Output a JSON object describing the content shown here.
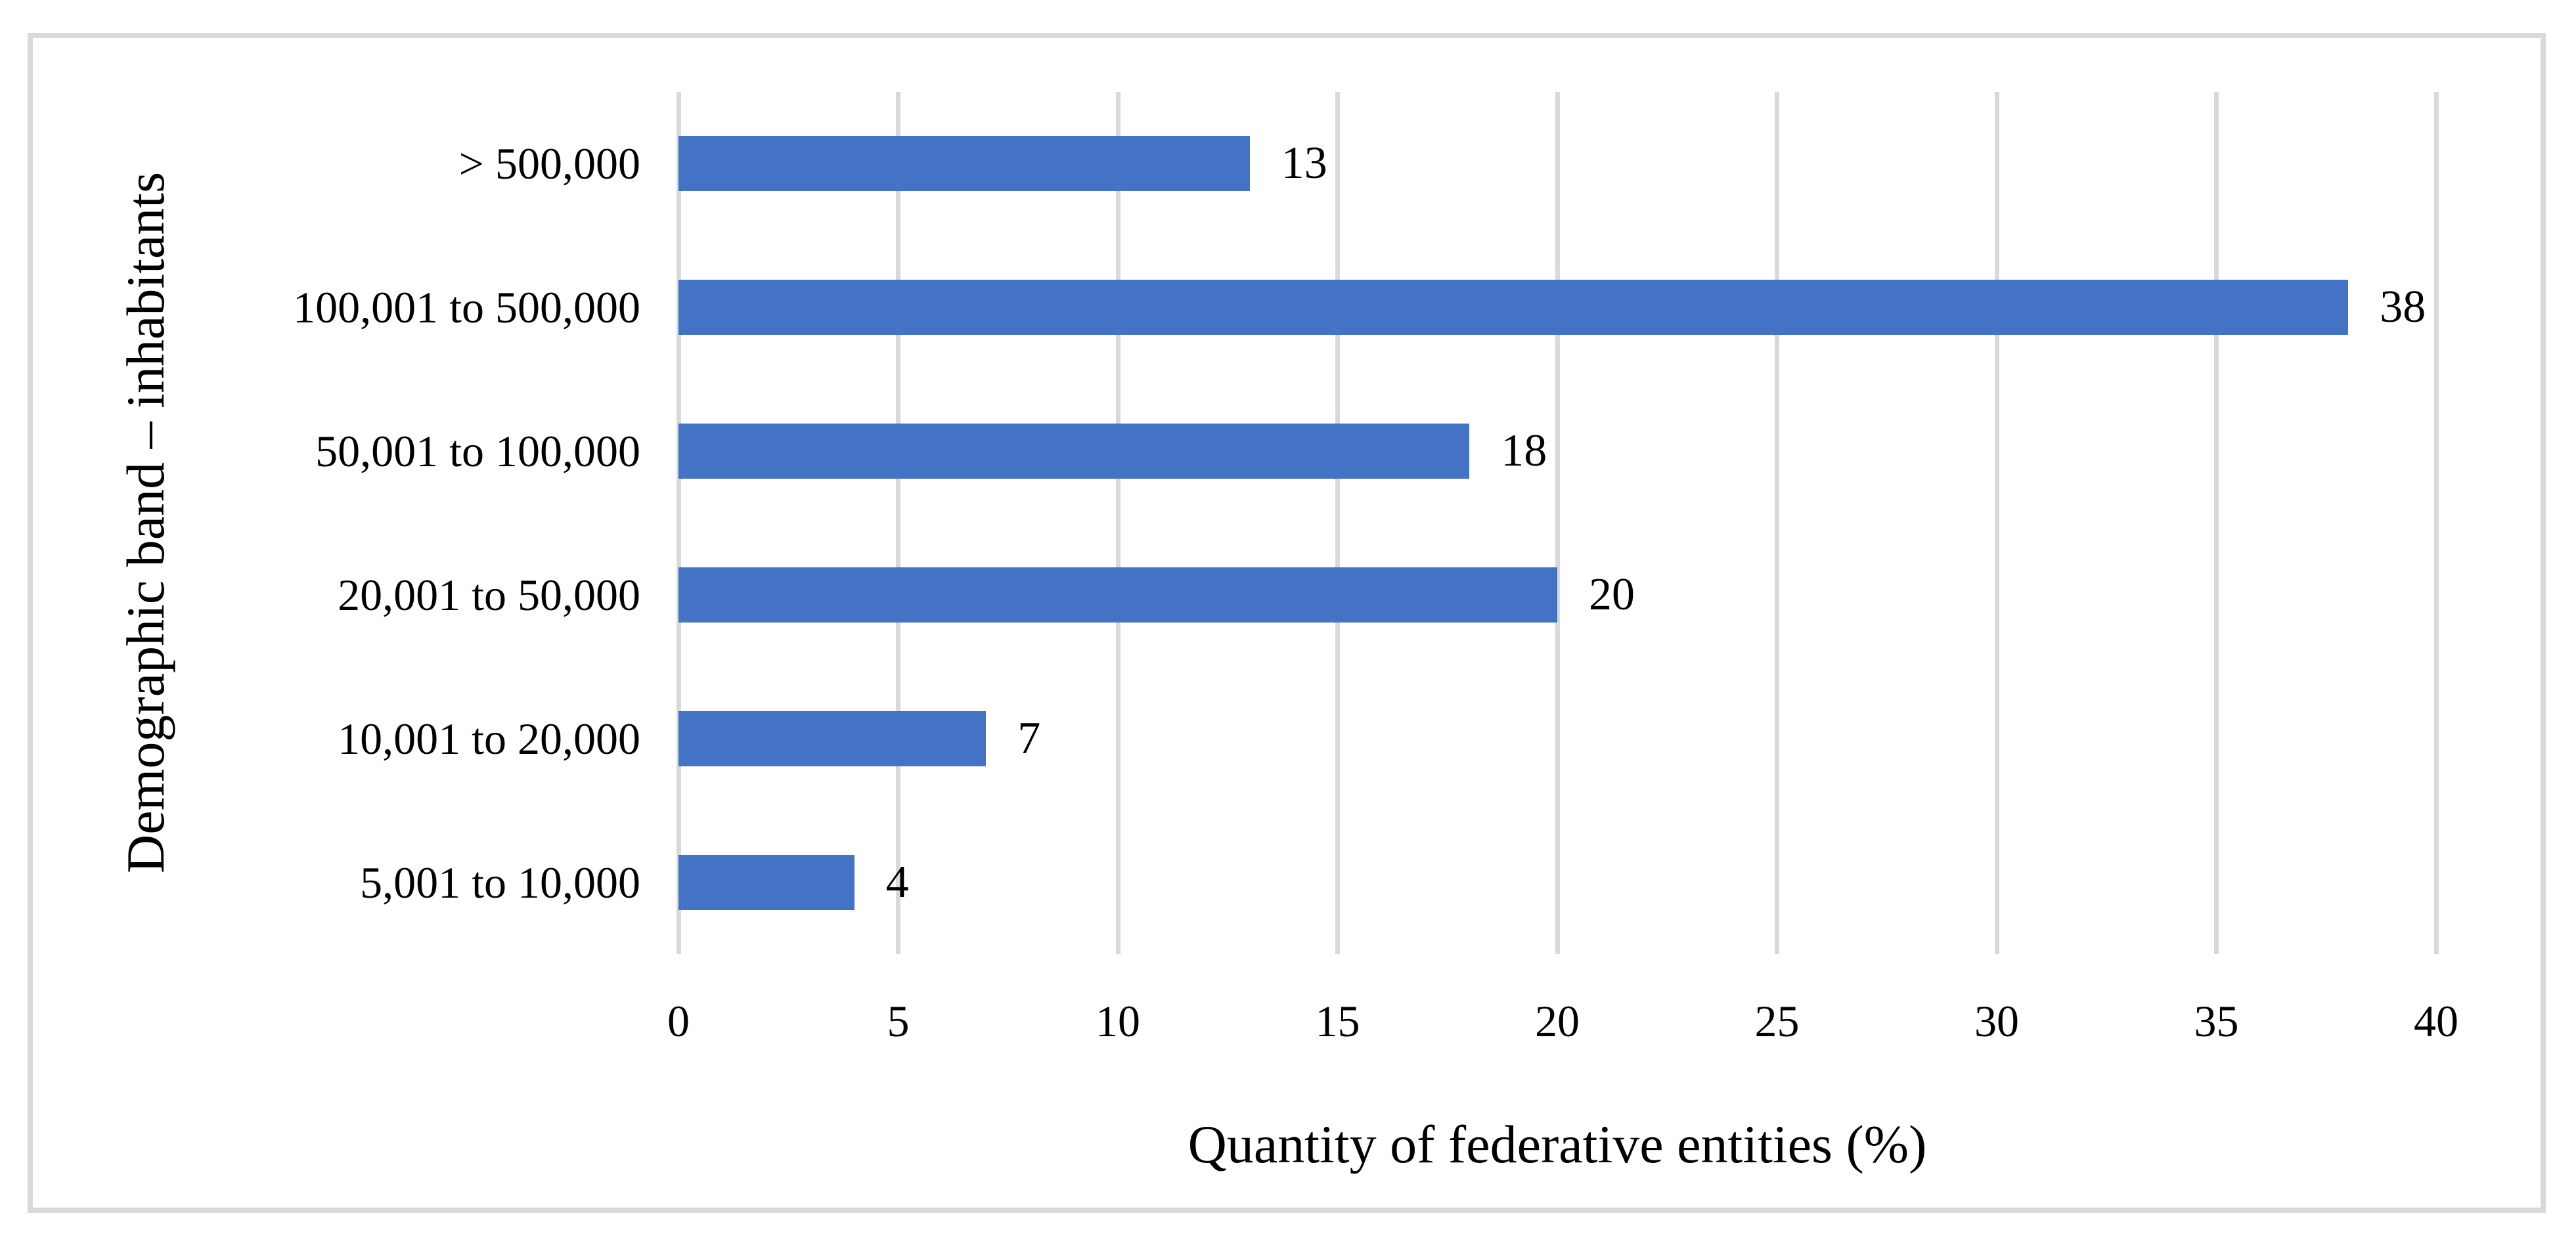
{
  "figure": {
    "background_color": "#ffffff",
    "border_color": "#D9D9D9"
  },
  "chart_data": {
    "type": "bar",
    "orientation": "horizontal",
    "title": "",
    "categories": [
      "> 500,000",
      "100,001 to 500,000",
      "50,001 to 100,000",
      "20,001 to 50,000",
      "10,001 to 20,000",
      "5,001 to 10,000"
    ],
    "values": [
      13,
      38,
      18,
      20,
      7,
      4
    ],
    "data_labels": [
      "13",
      "38",
      "18",
      "20",
      "7",
      "4"
    ],
    "xlabel": "Quantity of federative entities (%)",
    "ylabel": "Demographic band – inhabitants",
    "x_ticks": [
      "0",
      "5",
      "10",
      "15",
      "20",
      "25",
      "30",
      "35",
      "40"
    ],
    "xlim": [
      0,
      40
    ],
    "grid": "vertical-gridlines-on",
    "legend_position": "none",
    "bar_color": "#4472C4",
    "gridline_color": "#D9D9D9",
    "text_color": "#000000"
  }
}
